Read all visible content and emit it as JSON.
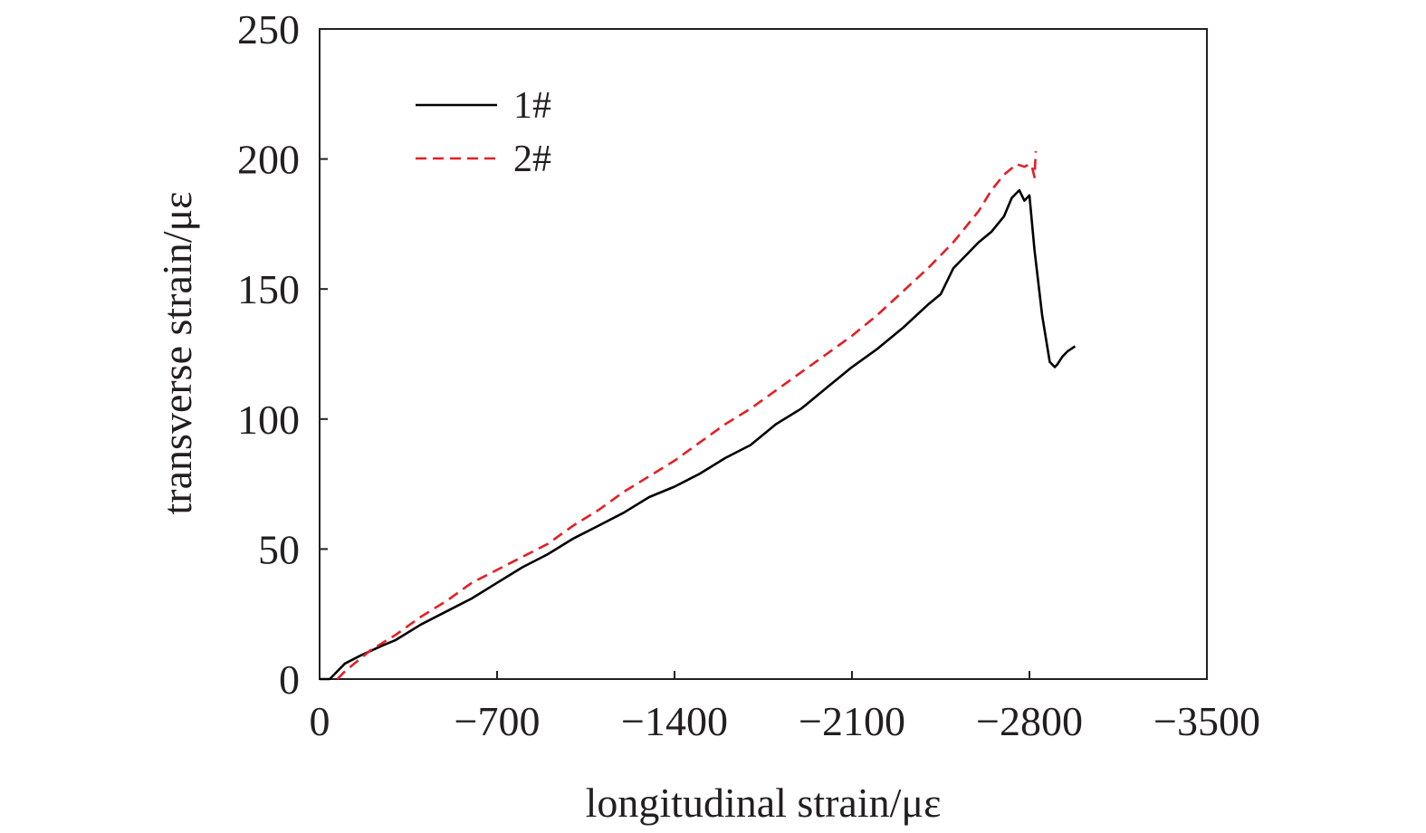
{
  "chart_data": {
    "type": "line",
    "title": "",
    "xlabel": "longitudinal strain/με",
    "ylabel": "transverse strain/με",
    "xlim": [
      0,
      -3500
    ],
    "ylim": [
      0,
      250
    ],
    "x_ticks": [
      0,
      -700,
      -1400,
      -2100,
      -2800,
      -3500
    ],
    "y_ticks": [
      0,
      50,
      100,
      150,
      200,
      250
    ],
    "x_tick_labels": [
      "0",
      "−700",
      "−1400",
      "−2100",
      "−2800",
      "−3500"
    ],
    "y_tick_labels": [
      "0",
      "50",
      "100",
      "150",
      "200",
      "250"
    ],
    "grid": false,
    "legend_position": "top-left",
    "series": [
      {
        "name": "1#",
        "color": "#000000",
        "dash": "solid",
        "x": [
          0,
          -40,
          -100,
          -160,
          -250,
          -300,
          -400,
          -500,
          -600,
          -700,
          -800,
          -900,
          -1000,
          -1100,
          -1200,
          -1300,
          -1400,
          -1500,
          -1600,
          -1700,
          -1800,
          -1900,
          -2000,
          -2100,
          -2200,
          -2300,
          -2400,
          -2450,
          -2500,
          -2550,
          -2600,
          -2650,
          -2700,
          -2730,
          -2760,
          -2780,
          -2800,
          -2820,
          -2850,
          -2880,
          -2900,
          -2910,
          -2930,
          -2950,
          -2980
        ],
        "y": [
          0,
          0,
          6,
          9,
          13,
          15,
          21,
          26,
          31,
          37,
          43,
          48,
          54,
          59,
          64,
          70,
          74,
          79,
          85,
          90,
          98,
          104,
          112,
          120,
          127,
          135,
          144,
          148,
          158,
          163,
          168,
          172,
          178,
          185,
          188,
          184,
          186,
          165,
          140,
          122,
          120,
          121,
          124,
          126,
          128
        ]
      },
      {
        "name": "2#",
        "color": "#e41e25",
        "dash": "dashed",
        "x": [
          -70,
          -100,
          -150,
          -200,
          -300,
          -400,
          -500,
          -600,
          -700,
          -800,
          -900,
          -1000,
          -1100,
          -1200,
          -1300,
          -1400,
          -1500,
          -1600,
          -1700,
          -1800,
          -1900,
          -2000,
          -2100,
          -2200,
          -2300,
          -2400,
          -2450,
          -2500,
          -2550,
          -2600,
          -2650,
          -2700,
          -2750,
          -2780,
          -2800,
          -2810,
          -2820,
          -2825
        ],
        "y": [
          0,
          3,
          7,
          11,
          17,
          24,
          30,
          37,
          42,
          47,
          52,
          59,
          65,
          72,
          78,
          84,
          91,
          98,
          104,
          111,
          118,
          125,
          132,
          140,
          149,
          158,
          163,
          168,
          174,
          180,
          188,
          194,
          198,
          197,
          198,
          197,
          193,
          203
        ]
      }
    ]
  }
}
